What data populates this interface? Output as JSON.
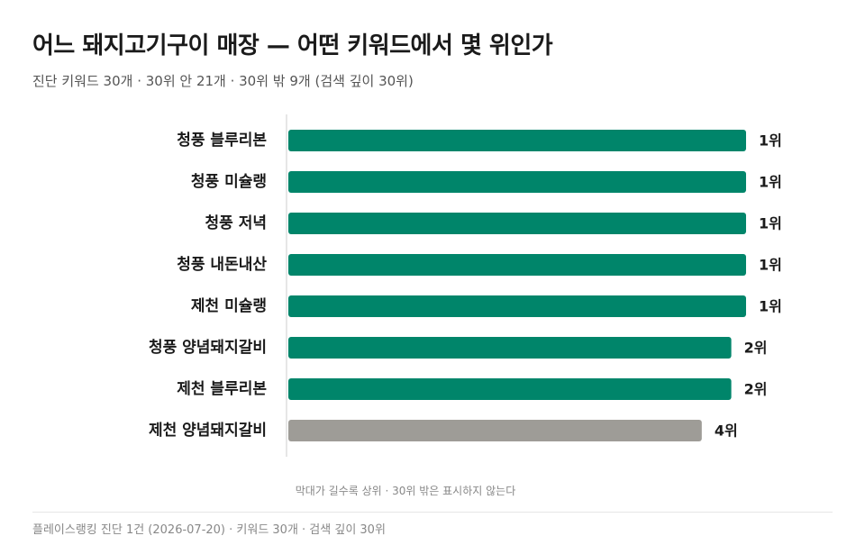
{
  "title": "어느 돼지고기구이 매장 — 어떤 키워드에서 몇 위인가",
  "subtitle": "진단 키워드 30개 · 30위 안 21개 · 30위 밖 9개 (검색 깊이 30위)",
  "note": "막대가 길수록 상위 · 30위 밖은 표시하지 않는다",
  "footer": "플레이스랭킹 진단 1건 (2026-07-20) · 키워드 30개 · 검색 깊이 30위",
  "colors": {
    "top": "#00856a",
    "other": "#9e9c97",
    "axis": "#cccccc"
  },
  "chart_data": {
    "type": "bar",
    "orientation": "horizontal",
    "categories": [
      "청풍 블루리본",
      "청풍 미슐랭",
      "청풍 저녁",
      "청풍 내돈내산",
      "제천 미슐랭",
      "청풍 양념돼지갈비",
      "제천 블루리본",
      "제천 양념돼지갈비"
    ],
    "values": [
      1,
      1,
      1,
      1,
      1,
      2,
      2,
      4
    ],
    "value_labels": [
      "1위",
      "1위",
      "1위",
      "1위",
      "1위",
      "2위",
      "2위",
      "4위"
    ],
    "highlight": [
      true,
      true,
      true,
      true,
      true,
      true,
      true,
      false
    ],
    "depth": 30,
    "reversed": true
  }
}
